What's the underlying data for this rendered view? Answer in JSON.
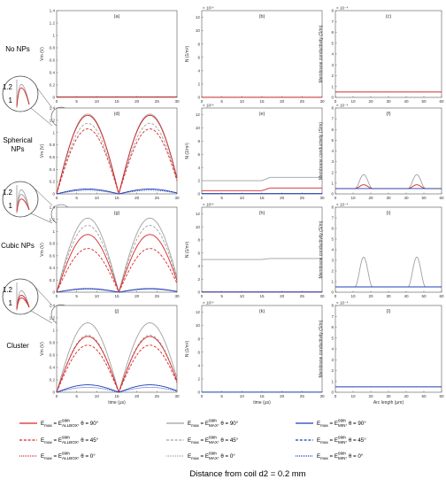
{
  "figure": {
    "caption": "Distance from coil d2 = 0.2 mm",
    "rows": [
      {
        "label_lines": [
          "No NPs"
        ],
        "panels": [
          "(a)",
          "(b)",
          "(c)"
        ]
      },
      {
        "label_lines": [
          "Spherical",
          "NPs"
        ],
        "panels": [
          "(d)",
          "(e)",
          "(f)"
        ]
      },
      {
        "label_lines": [
          "Cubic NPs"
        ],
        "panels": [
          "(g)",
          "(h)",
          "(i)"
        ]
      },
      {
        "label_lines": [
          "Cluster"
        ],
        "panels": [
          "(j)",
          "(k)",
          "(l)"
        ]
      }
    ],
    "zoom_tick_labels": [
      "1.2",
      "1"
    ],
    "colors": {
      "allbox": "#d62728",
      "max": "#a0a0a0",
      "min": "#1f3fb4"
    }
  },
  "axes": {
    "vm": {
      "ylabel": "Vm (V)",
      "yticks": [
        "0",
        "0.2",
        "0.4",
        "0.6",
        "0.8",
        "1",
        "1.2",
        "1.4"
      ],
      "ylim": [
        0,
        1.4
      ]
    },
    "n": {
      "ylabel": "N (1/m²)",
      "exponent": "× 10¹⁴",
      "yticks": [
        "0",
        "2",
        "4",
        "6",
        "8",
        "10",
        "12"
      ],
      "ylim": [
        0,
        13
      ]
    },
    "sigma": {
      "ylabel": "Membrane conductivity (S/m)",
      "exponent": "× 10⁻⁴",
      "yticks": [
        "0",
        "1",
        "2",
        "3",
        "4",
        "5",
        "6",
        "7",
        "8"
      ],
      "ylim": [
        0,
        8
      ]
    },
    "time": {
      "xlabel": "time (μs)",
      "xticks": [
        "0",
        "5",
        "10",
        "15",
        "20",
        "25",
        "30"
      ],
      "xlim": [
        0,
        30
      ]
    },
    "arc": {
      "xlabel": "Arc length (μm)",
      "xticks": [
        "0",
        "10",
        "20",
        "30",
        "40",
        "50",
        "60"
      ],
      "xlim": [
        0,
        60
      ]
    }
  },
  "legend": [
    {
      "col": 0,
      "row": 0,
      "color": "#d62728",
      "dash": "solid",
      "pre": "E",
      "presub": "max",
      "eq": " = E",
      "sup": "99th",
      "sub": "ALLBOX",
      "post": ", θ = 90°"
    },
    {
      "col": 0,
      "row": 1,
      "color": "#d62728",
      "dash": "dashed",
      "pre": "E",
      "presub": "max",
      "eq": " = E",
      "sup": "99th",
      "sub": "ALLBOX",
      "post": ", θ = 45°"
    },
    {
      "col": 0,
      "row": 2,
      "color": "#d62728",
      "dash": "dotted",
      "pre": "E",
      "presub": "max",
      "eq": " = E",
      "sup": "99th",
      "sub": "ALLBOX",
      "post": ", θ = 0°"
    },
    {
      "col": 1,
      "row": 0,
      "color": "#a0a0a0",
      "dash": "solid",
      "pre": "E",
      "presub": "max",
      "eq": " = E",
      "sup": "99th",
      "sub": "MAX",
      "post": ", θ = 90°"
    },
    {
      "col": 1,
      "row": 1,
      "color": "#a0a0a0",
      "dash": "dashed",
      "pre": "E",
      "presub": "max",
      "eq": " = E",
      "sup": "99th",
      "sub": "MAX",
      "post": ", θ = 45°"
    },
    {
      "col": 1,
      "row": 2,
      "color": "#a0a0a0",
      "dash": "dotted",
      "pre": "E",
      "presub": "max",
      "eq": " = E",
      "sup": "99th",
      "sub": "MAX",
      "post": ", θ = 0°"
    },
    {
      "col": 2,
      "row": 0,
      "color": "#1f3fb4",
      "dash": "solid",
      "pre": "E",
      "presub": "max",
      "eq": " = E",
      "sup": "99th",
      "sub": "MIN",
      "post": ", θ = 90°"
    },
    {
      "col": 2,
      "row": 1,
      "color": "#1f3fb4",
      "dash": "dashed",
      "pre": "E",
      "presub": "max",
      "eq": " = E",
      "sup": "99th",
      "sub": "MIN",
      "post": ", θ = 45°"
    },
    {
      "col": 2,
      "row": 2,
      "color": "#1f3fb4",
      "dash": "dotted",
      "pre": "E",
      "presub": "max",
      "eq": " = E",
      "sup": "99th",
      "sub": "MIN",
      "post": ", θ = 0°"
    }
  ],
  "chart_data": [
    {
      "panel": "(a)",
      "type": "line",
      "x": [
        0,
        30
      ],
      "series": [
        {
          "color": "#d62728",
          "dash": "solid",
          "values": [
            0.01,
            0.01
          ]
        }
      ]
    },
    {
      "panel": "(b)",
      "type": "line",
      "x": [
        0,
        30
      ],
      "series": [
        {
          "color": "#d62728",
          "dash": "solid",
          "values": [
            0.02,
            0.02
          ]
        }
      ]
    },
    {
      "panel": "(c)",
      "type": "line",
      "x": [
        0,
        60
      ],
      "series": [
        {
          "color": "#d62728",
          "dash": "solid",
          "values": [
            0.5,
            0.5
          ]
        }
      ]
    },
    {
      "panel": "(d)",
      "type": "line",
      "x": [
        0,
        30
      ],
      "period_us": 15.5,
      "series": [
        {
          "color": "#a0a0a0",
          "dash": "solid",
          "peak": 1.3
        },
        {
          "color": "#a0a0a0",
          "dash": "dashed",
          "peak": 1.15
        },
        {
          "color": "#d62728",
          "dash": "solid",
          "peak": 1.28
        },
        {
          "color": "#d62728",
          "dash": "dashed",
          "peak": 1.06
        },
        {
          "color": "#1f3fb4",
          "dash": "solid",
          "peak": 0.08
        },
        {
          "color": "#1f3fb4",
          "dash": "dotted",
          "peak": 0.06
        }
      ]
    },
    {
      "panel": "(e)",
      "type": "line",
      "x": [
        0,
        15,
        17,
        30
      ],
      "series": [
        {
          "color": "#a0a0a0",
          "dash": "solid",
          "values": [
            2.0,
            2.0,
            2.5,
            2.5
          ]
        },
        {
          "color": "#d62728",
          "dash": "solid",
          "values": [
            0.5,
            0.5,
            0.9,
            0.9
          ]
        },
        {
          "color": "#1f3fb4",
          "dash": "solid",
          "values": [
            0.05,
            0.05,
            0.05,
            0.05
          ]
        }
      ]
    },
    {
      "panel": "(f)",
      "type": "line",
      "x": [
        0,
        60
      ],
      "bumps_at": [
        16,
        46
      ],
      "series": [
        {
          "color": "#a0a0a0",
          "dash": "solid",
          "base": 0.5,
          "peak": 1.8
        },
        {
          "color": "#d62728",
          "dash": "solid",
          "base": 0.5,
          "peak": 0.85
        },
        {
          "color": "#1f3fb4",
          "dash": "solid",
          "base": 0.5,
          "peak": 0.5
        }
      ]
    },
    {
      "panel": "(g)",
      "type": "line",
      "x": [
        0,
        30
      ],
      "period_us": 15.5,
      "series": [
        {
          "color": "#a0a0a0",
          "dash": "solid",
          "peak": 1.22
        },
        {
          "color": "#a0a0a0",
          "dash": "dashed",
          "peak": 1.1
        },
        {
          "color": "#d62728",
          "dash": "solid",
          "peak": 0.95
        },
        {
          "color": "#d62728",
          "dash": "dashed",
          "peak": 0.72
        },
        {
          "color": "#1f3fb4",
          "dash": "solid",
          "peak": 0.06
        },
        {
          "color": "#1f3fb4",
          "dash": "dotted",
          "peak": 0.05
        }
      ]
    },
    {
      "panel": "(h)",
      "type": "line",
      "x": [
        0,
        15,
        17,
        30
      ],
      "series": [
        {
          "color": "#a0a0a0",
          "dash": "solid",
          "values": [
            5.0,
            5.0,
            5.15,
            5.15
          ]
        },
        {
          "color": "#d62728",
          "dash": "solid",
          "values": [
            0.02,
            0.02,
            0.02,
            0.02
          ]
        },
        {
          "color": "#1f3fb4",
          "dash": "solid",
          "values": [
            0.04,
            0.04,
            0.04,
            0.04
          ]
        }
      ]
    },
    {
      "panel": "(i)",
      "type": "line",
      "x": [
        0,
        60
      ],
      "bumps_at": [
        16,
        46
      ],
      "series": [
        {
          "color": "#a0a0a0",
          "dash": "solid",
          "base": 0.5,
          "peak": 3.3
        },
        {
          "color": "#1f3fb4",
          "dash": "solid",
          "base": 0.5,
          "peak": 0.5
        }
      ]
    },
    {
      "panel": "(j)",
      "type": "line",
      "x": [
        0,
        30
      ],
      "period_us": 15.5,
      "series": [
        {
          "color": "#a0a0a0",
          "dash": "solid",
          "peak": 1.12
        },
        {
          "color": "#a0a0a0",
          "dash": "dashed",
          "peak": 0.92
        },
        {
          "color": "#d62728",
          "dash": "solid",
          "peak": 0.9
        },
        {
          "color": "#d62728",
          "dash": "dashed",
          "peak": 0.76
        },
        {
          "color": "#1f3fb4",
          "dash": "solid",
          "peak": 0.12
        },
        {
          "color": "#1f3fb4",
          "dash": "dotted",
          "peak": 0.08
        }
      ]
    },
    {
      "panel": "(k)",
      "type": "line",
      "x": [
        0,
        30
      ],
      "series": [
        {
          "color": "#1f3fb4",
          "dash": "solid",
          "values": [
            0.03,
            0.03
          ]
        }
      ]
    },
    {
      "panel": "(l)",
      "type": "line",
      "x": [
        0,
        60
      ],
      "series": [
        {
          "color": "#1f3fb4",
          "dash": "solid",
          "values": [
            0.5,
            0.5
          ]
        }
      ]
    }
  ]
}
